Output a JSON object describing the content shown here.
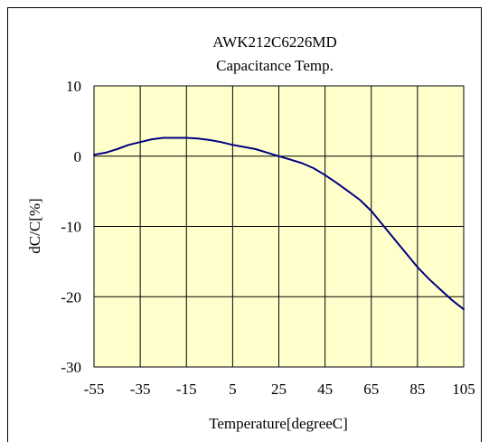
{
  "chart_data": {
    "type": "line",
    "title": "AWK212C6226MD",
    "subtitle": "Capacitance Temp.",
    "xlabel": "Temperature[degreeC]",
    "ylabel": "dC/C[%]",
    "xlim": [
      -55,
      105
    ],
    "ylim": [
      -30,
      10
    ],
    "x_ticks": [
      "-55",
      "-35",
      "-15",
      "5",
      "25",
      "45",
      "65",
      "85",
      "105"
    ],
    "y_ticks": [
      "10",
      "0",
      "-10",
      "-20",
      "-30"
    ],
    "grid": true,
    "plot_background": "#ffffcc",
    "series": [
      {
        "color": "#00007f",
        "points": [
          [
            -55,
            0.2
          ],
          [
            -50,
            0.5
          ],
          [
            -45,
            1.0
          ],
          [
            -40,
            1.6
          ],
          [
            -35,
            2.0
          ],
          [
            -30,
            2.4
          ],
          [
            -25,
            2.6
          ],
          [
            -20,
            2.6
          ],
          [
            -15,
            2.6
          ],
          [
            -10,
            2.5
          ],
          [
            -5,
            2.3
          ],
          [
            0,
            2.0
          ],
          [
            5,
            1.6
          ],
          [
            10,
            1.3
          ],
          [
            15,
            1.0
          ],
          [
            20,
            0.5
          ],
          [
            25,
            0.0
          ],
          [
            30,
            -0.5
          ],
          [
            35,
            -1.0
          ],
          [
            40,
            -1.7
          ],
          [
            45,
            -2.7
          ],
          [
            50,
            -3.8
          ],
          [
            55,
            -5.0
          ],
          [
            60,
            -6.2
          ],
          [
            65,
            -7.8
          ],
          [
            70,
            -9.8
          ],
          [
            75,
            -11.8
          ],
          [
            80,
            -13.8
          ],
          [
            85,
            -15.8
          ],
          [
            90,
            -17.5
          ],
          [
            95,
            -19.0
          ],
          [
            100,
            -20.5
          ],
          [
            105,
            -21.8
          ]
        ]
      }
    ]
  }
}
